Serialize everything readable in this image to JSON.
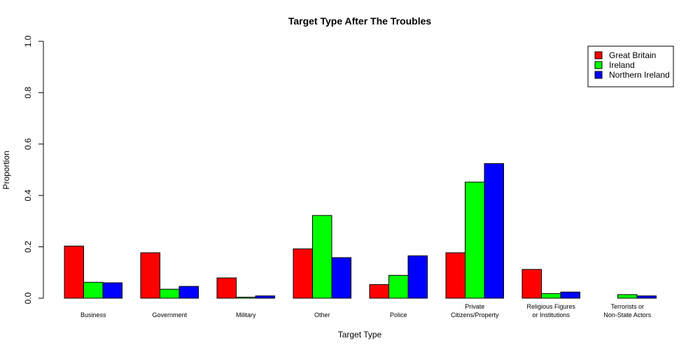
{
  "chart_data": {
    "type": "bar",
    "title": "Target Type After The Troubles",
    "xlabel": "Target Type",
    "ylabel": "Proportion",
    "ylim": [
      0,
      1
    ],
    "yticks": [
      "0.0",
      "0.2",
      "0.4",
      "0.6",
      "0.8",
      "1.0"
    ],
    "grid": false,
    "legend_position": "top-right",
    "categories": [
      [
        "Business"
      ],
      [
        "Government"
      ],
      [
        "Military"
      ],
      [
        "Other"
      ],
      [
        "Police"
      ],
      [
        "Private",
        "Citizens/Property"
      ],
      [
        "Religious Figures",
        "or Institutions"
      ],
      [
        "Terrorists or",
        "Non-State Actors"
      ]
    ],
    "series": [
      {
        "name": "Great Britain",
        "color": "#ff0000",
        "values": [
          0.203,
          0.177,
          0.079,
          0.192,
          0.053,
          0.177,
          0.112,
          0.0
        ]
      },
      {
        "name": "Ireland",
        "color": "#00ff00",
        "values": [
          0.062,
          0.035,
          0.004,
          0.322,
          0.089,
          0.452,
          0.018,
          0.014
        ]
      },
      {
        "name": "Northern Ireland",
        "color": "#0000ff",
        "values": [
          0.06,
          0.046,
          0.009,
          0.158,
          0.165,
          0.524,
          0.024,
          0.009
        ]
      }
    ]
  }
}
